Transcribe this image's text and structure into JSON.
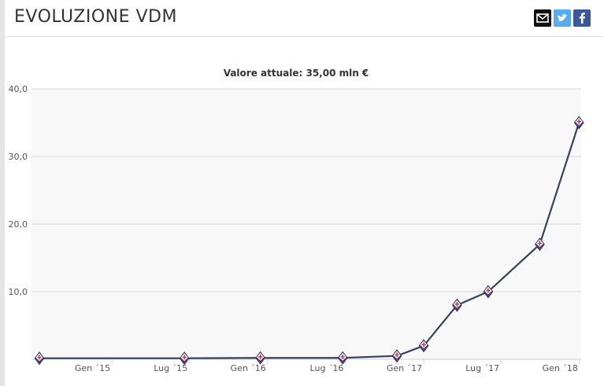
{
  "page": {
    "title": "EVOLUZIONE VDM"
  },
  "share": {
    "mail": "mail-icon",
    "twitter": "twitter-icon",
    "facebook": "facebook-icon"
  },
  "chart_data": {
    "type": "line",
    "title": "Valore attuale: 35,00 mln €",
    "xlabel": "",
    "ylabel": "",
    "ylim": [
      0,
      40
    ],
    "yticks": [
      {
        "value": 10,
        "label": "10,0"
      },
      {
        "value": 20,
        "label": "20,0"
      },
      {
        "value": 30,
        "label": "30,0"
      },
      {
        "value": 40,
        "label": "40,0"
      }
    ],
    "xlim": [
      "2014-07-15",
      "2018-01-05"
    ],
    "xticks": [
      {
        "date": "2015-01-01",
        "label": "Gen ´15"
      },
      {
        "date": "2015-07-01",
        "label": "Lug ´15"
      },
      {
        "date": "2016-01-01",
        "label": "Gen ´16"
      },
      {
        "date": "2016-07-01",
        "label": "Lug ´16"
      },
      {
        "date": "2017-01-01",
        "label": "Gen ´17"
      },
      {
        "date": "2017-07-01",
        "label": "Lug ´17"
      },
      {
        "date": "2018-01-01",
        "label": "Gen ´18"
      }
    ],
    "grid": true,
    "series": [
      {
        "color": "#34445e",
        "points": [
          {
            "date": "2014-07-15",
            "value": 0.15
          },
          {
            "date": "2015-06-20",
            "value": 0.15
          },
          {
            "date": "2015-12-15",
            "value": 0.2
          },
          {
            "date": "2016-06-25",
            "value": 0.2
          },
          {
            "date": "2016-10-30",
            "value": 0.5
          },
          {
            "date": "2017-01-01",
            "value": 2.0
          },
          {
            "date": "2017-03-20",
            "value": 8.0
          },
          {
            "date": "2017-06-01",
            "value": 10.0
          },
          {
            "date": "2017-09-30",
            "value": 17.0
          },
          {
            "date": "2017-12-31",
            "value": 35.0
          }
        ]
      }
    ]
  }
}
